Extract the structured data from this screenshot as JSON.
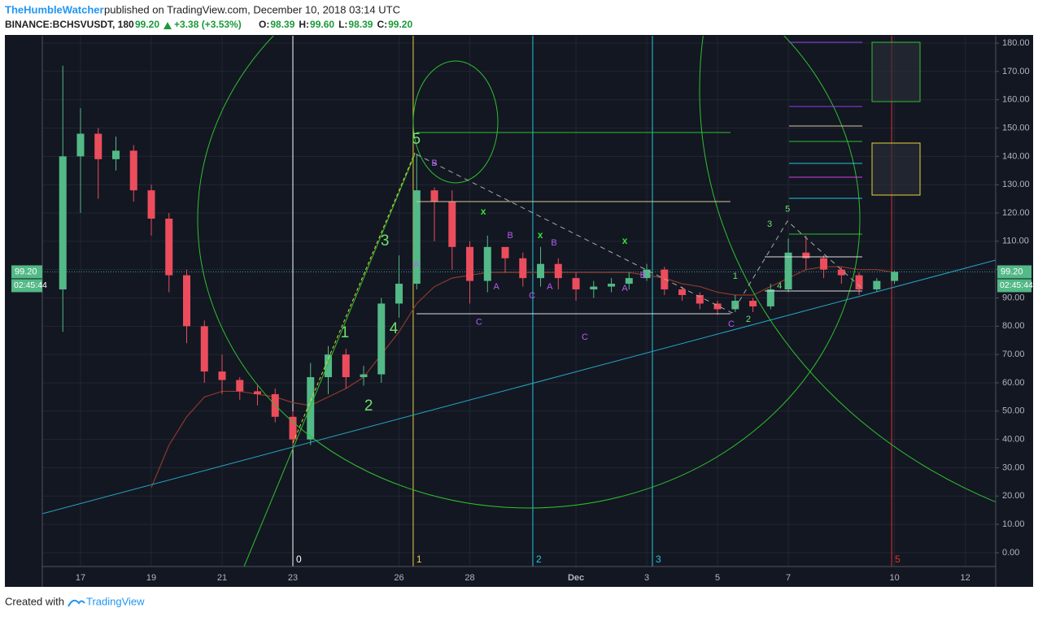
{
  "header": {
    "author": "TheHumbleWatcher",
    "published": "published on TradingView.com, December 10, 2018 03:14 UTC",
    "symbol": "BINANCE:BCHSVUSDT, 180",
    "price": "99.20",
    "change": "+3.38 (+3.53%)",
    "ohlc": [
      {
        "label": "O:",
        "value": "98.39"
      },
      {
        "label": "H:",
        "value": "99.60"
      },
      {
        "label": "L:",
        "value": "98.39"
      },
      {
        "label": "C:",
        "value": "99.20"
      }
    ]
  },
  "footer": {
    "text": "Created with",
    "brand": "TradingView"
  },
  "chart_data": {
    "type": "candlestick",
    "x": [
      16.5,
      17,
      17.5,
      18,
      18.5,
      19,
      19.5,
      20,
      20.5,
      21,
      21.5,
      22,
      22.5,
      23,
      23.5,
      24,
      24.5,
      25,
      25.5,
      26,
      26.5,
      27,
      27.5,
      28,
      28.5,
      29,
      29.5,
      30,
      30.5,
      31,
      31.5,
      32,
      32.5,
      33,
      33.5,
      34,
      34.5,
      35,
      35.5,
      36,
      36.5,
      37,
      37.5,
      38,
      38.5,
      39,
      39.5,
      40
    ],
    "open": [
      93,
      140,
      148,
      139,
      142,
      128,
      118,
      98,
      80,
      64,
      61,
      57,
      56,
      48,
      40,
      62,
      70,
      62,
      63,
      88,
      95,
      128,
      124,
      108,
      96,
      108,
      104,
      97,
      102,
      97,
      93,
      94,
      95,
      97,
      100,
      93,
      91,
      88,
      86,
      89,
      87,
      93,
      106,
      104,
      100,
      98,
      93,
      96
    ],
    "high": [
      172,
      157,
      150,
      147,
      144,
      130,
      120,
      100,
      82,
      70,
      62,
      59,
      58,
      50,
      67,
      73,
      72,
      66,
      90,
      105,
      141,
      129,
      128,
      110,
      112,
      107,
      106,
      108,
      104,
      99,
      96,
      97,
      99,
      102,
      101,
      94,
      92,
      89,
      91,
      90,
      95,
      111,
      112,
      105,
      101,
      99,
      97,
      99.6
    ],
    "low": [
      78,
      120,
      125,
      135,
      124,
      112,
      92,
      74,
      60,
      56,
      54,
      52,
      46,
      37,
      38,
      56,
      58,
      59,
      60,
      83,
      93,
      110,
      100,
      88,
      92,
      99,
      94,
      94,
      93,
      89,
      90,
      92,
      93,
      96,
      91,
      89,
      86,
      84,
      85,
      85,
      86,
      92,
      100,
      97,
      95,
      91,
      92,
      95
    ],
    "close": [
      140,
      148,
      139,
      142,
      128,
      118,
      98,
      80,
      64,
      61,
      57,
      56,
      48,
      40,
      62,
      70,
      62,
      63,
      88,
      95,
      128,
      124,
      108,
      96,
      108,
      104,
      97,
      102,
      97,
      93,
      94,
      95,
      97,
      100,
      93,
      91,
      88,
      86,
      89,
      87,
      93,
      106,
      104,
      100,
      98,
      93,
      96,
      99.2
    ],
    "ma": {
      "color": "#8b3a2a",
      "values": [
        null,
        null,
        null,
        null,
        null,
        23,
        38,
        48,
        55,
        57,
        57,
        56,
        55,
        53,
        52,
        55,
        58,
        62,
        70,
        78,
        88,
        94,
        97,
        98,
        99,
        99,
        99,
        99,
        99,
        99,
        99,
        99,
        99,
        98,
        97,
        95,
        94,
        92,
        91,
        91,
        94,
        97,
        100,
        101,
        101,
        100,
        100,
        99
      ]
    },
    "up_color": "#53b987",
    "down_color": "#eb4d5c",
    "xlim": [
      15.92,
      42.86
    ],
    "ylim": [
      -4.9,
      182.6
    ],
    "xticks": [
      17,
      19,
      21,
      23,
      26,
      28,
      {
        "value": 31,
        "label": "Dec"
      },
      {
        "value": 33,
        "label": "3"
      },
      {
        "value": 35,
        "label": "5"
      },
      {
        "value": 37,
        "label": "7"
      },
      {
        "value": 40,
        "label": "10"
      },
      {
        "value": 42,
        "label": "12"
      }
    ],
    "yticks": [
      {
        "value": 0,
        "label": "0.00"
      },
      {
        "value": 10,
        "label": "10.00"
      },
      {
        "value": 20,
        "label": "20.00"
      },
      {
        "value": 30,
        "label": "30.00"
      },
      {
        "value": 40,
        "label": "40.00"
      },
      {
        "value": 50,
        "label": "50.00"
      },
      {
        "value": 60,
        "label": "60.00"
      },
      {
        "value": 70,
        "label": "70.00"
      },
      {
        "value": 80,
        "label": "80.00"
      },
      {
        "value": 90,
        "label": "90.00"
      },
      {
        "value": 100,
        "label": "100.00"
      },
      {
        "value": 110,
        "label": "110.00"
      },
      {
        "value": 120,
        "label": "120.00"
      },
      {
        "value": 130,
        "label": "130.00"
      },
      {
        "value": 140,
        "label": "140.00"
      },
      {
        "value": 150,
        "label": "150.00"
      },
      {
        "value": 160,
        "label": "160.00"
      },
      {
        "value": 170,
        "label": "170.00"
      },
      {
        "value": 180,
        "label": "180.00"
      }
    ],
    "grid": true,
    "last_price": {
      "value": 99.2,
      "label": "99.20",
      "countdown": "02:45:44",
      "color": "#53b987"
    },
    "cycle_markers": [
      {
        "x": 23,
        "label": "0",
        "color": "#ffffff"
      },
      {
        "x": 26.4,
        "label": "1",
        "color": "#e5d23a"
      },
      {
        "x": 29.78,
        "label": "2",
        "color": "#26c6da"
      },
      {
        "x": 33.16,
        "label": "3",
        "color": "#26c6da"
      },
      {
        "x": 39.92,
        "label": "5",
        "color": "#e0312f"
      }
    ],
    "primary_waves": {
      "color": "#6ee06e",
      "labels": [
        {
          "text": "1",
          "x": 24.47,
          "y": 77.5
        },
        {
          "text": "2",
          "x": 25.14,
          "y": 51.7
        },
        {
          "text": "3",
          "x": 25.6,
          "y": 110
        },
        {
          "text": "4",
          "x": 25.85,
          "y": 79
        },
        {
          "text": "5",
          "x": 26.49,
          "y": 145.9
        }
      ]
    },
    "secondary_waves": {
      "color": "#6ee06e",
      "labels": [
        {
          "text": "1",
          "x": 35.5,
          "y": 97.6
        },
        {
          "text": "2",
          "x": 35.87,
          "y": 82.4
        },
        {
          "text": "3",
          "x": 36.47,
          "y": 116
        },
        {
          "text": "4",
          "x": 36.75,
          "y": 94.2
        },
        {
          "text": "5",
          "x": 36.98,
          "y": 121.2
        }
      ]
    },
    "corrective_labels": {
      "color": "#b45ef0",
      "labels": [
        {
          "text": "B",
          "x": 27.0,
          "y": 137.5
        },
        {
          "text": "A",
          "x": 26.49,
          "y": 101.6
        },
        {
          "text": "B",
          "x": 29.14,
          "y": 112
        },
        {
          "text": "A",
          "x": 28.75,
          "y": 93.9
        },
        {
          "text": "C",
          "x": 28.26,
          "y": 81.3
        },
        {
          "text": "B",
          "x": 30.38,
          "y": 109.4
        },
        {
          "text": "C",
          "x": 29.76,
          "y": 90.7
        },
        {
          "text": "A",
          "x": 30.26,
          "y": 93.9
        },
        {
          "text": "C",
          "x": 31.25,
          "y": 76.1
        },
        {
          "text": "B",
          "x": 32.89,
          "y": 97.9
        },
        {
          "text": "A",
          "x": 32.38,
          "y": 93.3
        },
        {
          "text": "C",
          "x": 35.39,
          "y": 80.7
        }
      ]
    },
    "x_labels": {
      "color": "#33e033",
      "labels": [
        {
          "text": "x",
          "x": 28.38,
          "y": 120.3
        },
        {
          "text": "x",
          "x": 29.99,
          "y": 112
        },
        {
          "text": "x",
          "x": 32.38,
          "y": 110
        }
      ]
    }
  }
}
